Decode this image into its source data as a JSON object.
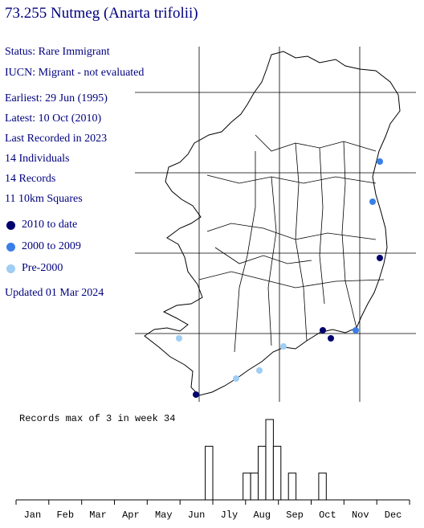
{
  "title": "73.255 Nutmeg (Anarta trifolii)",
  "info": {
    "status": "Status: Rare Immigrant",
    "iucn": "IUCN: Migrant - not evaluated",
    "earliest": "Earliest: 29 Jun (1995)",
    "latest": "Latest: 10 Oct (2010)",
    "last_recorded": "Last Recorded in 2023",
    "individuals": "14 Individuals",
    "records": "14 Records",
    "squares": "11 10km Squares",
    "updated": "Updated 01 Mar 2024"
  },
  "legend": [
    {
      "label": "2010 to date",
      "color": "#00006e"
    },
    {
      "label": "2000 to 2009",
      "color": "#3a7fe8"
    },
    {
      "label": "Pre-2000",
      "color": "#9fcdf3"
    }
  ],
  "map_records": [
    {
      "period": "2000 to 2009"
    },
    {
      "period": "2000 to 2009"
    },
    {
      "period": "2010 to date"
    },
    {
      "period": "2010 to date"
    },
    {
      "period": "2010 to date"
    },
    {
      "period": "2000 to 2009"
    },
    {
      "period": "Pre-2000"
    },
    {
      "period": "Pre-2000"
    },
    {
      "period": "Pre-2000"
    },
    {
      "period": "Pre-2000"
    },
    {
      "period": "2010 to date"
    }
  ],
  "chart_data": {
    "type": "bar",
    "title": "Records max of 3 in week 34",
    "x_tick_labels": [
      "Jan",
      "Feb",
      "Mar",
      "Apr",
      "May",
      "Jun",
      "Jly",
      "Aug",
      "Sep",
      "Oct",
      "Nov",
      "Dec"
    ],
    "xlabel": "",
    "ylabel": "",
    "ylim": [
      0,
      3
    ],
    "bars": [
      {
        "week": 26,
        "value": 2
      },
      {
        "week": 31,
        "value": 1
      },
      {
        "week": 32,
        "value": 1
      },
      {
        "week": 33,
        "value": 2
      },
      {
        "week": 34,
        "value": 3
      },
      {
        "week": 35,
        "value": 2
      },
      {
        "week": 37,
        "value": 1
      },
      {
        "week": 41,
        "value": 1
      }
    ]
  }
}
